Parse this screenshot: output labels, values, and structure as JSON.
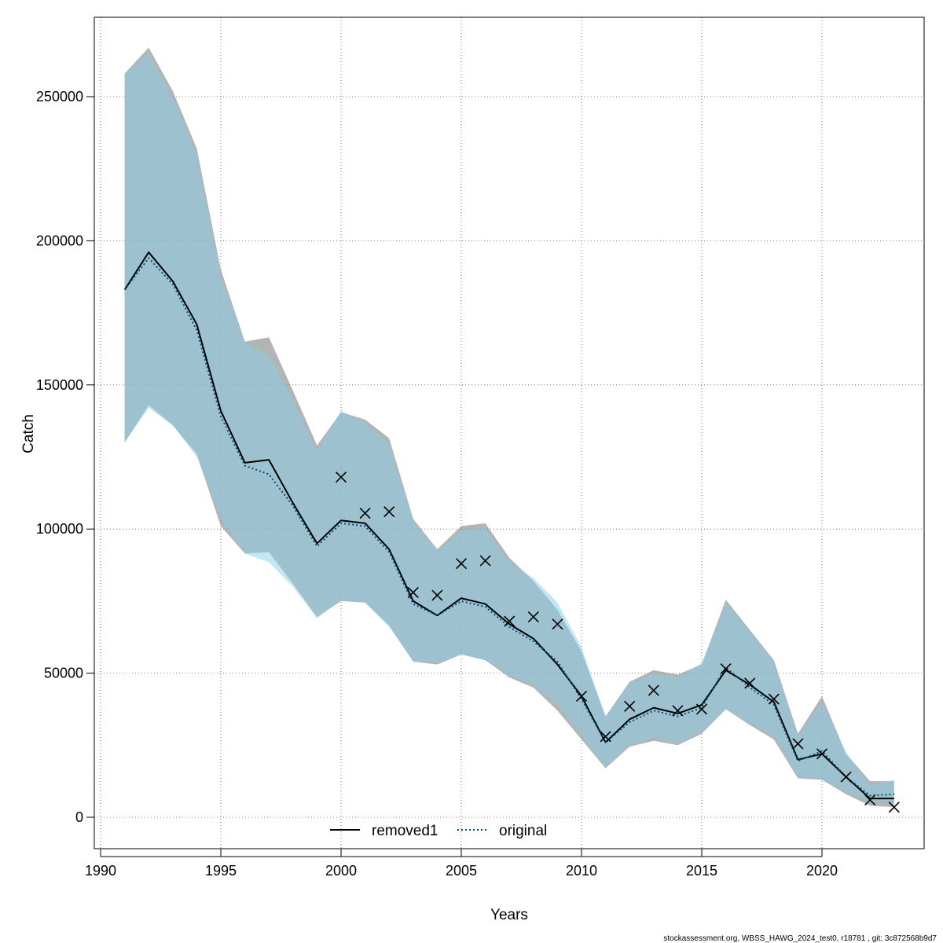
{
  "chart_data": {
    "type": "line",
    "xlabel": "Years",
    "ylabel": "Catch",
    "xlim": [
      1990,
      2023
    ],
    "ylim": [
      0,
      270000
    ],
    "x_ticks": [
      "1990",
      "1995",
      "2000",
      "2005",
      "2010",
      "2015",
      "2020"
    ],
    "y_ticks": [
      "0",
      "50000",
      "100000",
      "150000",
      "200000",
      "250000"
    ],
    "grid": true,
    "legend_position": "bottom-center",
    "colors": {
      "removed1_band": "#8c8c8c",
      "original_band": "#87ceeb",
      "removed1_line": "#000000",
      "original_line": "#00507a",
      "observed": "#000000",
      "grid": "#555555"
    },
    "series": [
      {
        "name": "removed1",
        "style": "solid",
        "x": [
          1991,
          1992,
          1993,
          1994,
          1995,
          1996,
          1997,
          1998,
          1999,
          2000,
          2001,
          2002,
          2003,
          2004,
          2005,
          2006,
          2007,
          2008,
          2009,
          2010,
          2011,
          2012,
          2013,
          2014,
          2015,
          2016,
          2017,
          2018,
          2019,
          2020,
          2021,
          2022,
          2023
        ],
        "values": [
          183000,
          196000,
          186000,
          171000,
          141000,
          123000,
          124000,
          109000,
          95000,
          103000,
          102000,
          93000,
          75000,
          70000,
          76000,
          74000,
          67000,
          62000,
          53000,
          42000,
          26000,
          34000,
          38000,
          36000,
          39000,
          51000,
          46000,
          40000,
          20000,
          22000,
          14000,
          6500,
          6500
        ],
        "lower": [
          130000,
          143000,
          136000,
          126000,
          101000,
          91500,
          92000,
          81000,
          69500,
          75000,
          74500,
          66500,
          54000,
          53000,
          56500,
          54500,
          48500,
          45000,
          37000,
          27000,
          17000,
          24500,
          26500,
          25000,
          29000,
          37500,
          32000,
          27000,
          13500,
          13000,
          8000,
          4000,
          3500
        ],
        "upper": [
          258000,
          267000,
          252000,
          232000,
          190000,
          165000,
          166500,
          148000,
          129000,
          140500,
          138000,
          131500,
          103500,
          93000,
          101000,
          102000,
          90000,
          82000,
          72000,
          57500,
          35000,
          47000,
          51000,
          49500,
          53000,
          75500,
          65000,
          54500,
          29000,
          42000,
          22000,
          12500,
          12500
        ]
      },
      {
        "name": "original",
        "style": "dotted",
        "x": [
          1991,
          1992,
          1993,
          1994,
          1995,
          1996,
          1997,
          1998,
          1999,
          2000,
          2001,
          2002,
          2003,
          2004,
          2005,
          2006,
          2007,
          2008,
          2009,
          2010,
          2011,
          2012,
          2013,
          2014,
          2015,
          2016,
          2017,
          2018,
          2019,
          2020,
          2021,
          2022,
          2023
        ],
        "values": [
          183000,
          194000,
          185000,
          169000,
          139000,
          122000,
          119000,
          108000,
          94000,
          102000,
          101000,
          92000,
          74000,
          70000,
          75000,
          73000,
          66000,
          61000,
          54000,
          41000,
          26000,
          33000,
          37000,
          35000,
          38000,
          52000,
          45000,
          39000,
          19500,
          23000,
          14000,
          7500,
          8000
        ],
        "lower": [
          130000,
          142000,
          136000,
          125000,
          103500,
          91500,
          88500,
          80000,
          69000,
          75500,
          74500,
          66000,
          54000,
          53500,
          56500,
          54500,
          49000,
          46000,
          39000,
          28000,
          17500,
          25000,
          27500,
          25500,
          29500,
          37500,
          32500,
          28000,
          14000,
          13000,
          8500,
          5500,
          5500
        ],
        "upper": [
          258000,
          265000,
          250000,
          230000,
          188000,
          164500,
          160500,
          145000,
          127000,
          141000,
          137000,
          129500,
          103000,
          92500,
          99500,
          100500,
          88500,
          83000,
          74500,
          59000,
          35000,
          46500,
          50000,
          48500,
          53500,
          74500,
          64500,
          54000,
          28000,
          40000,
          22500,
          11000,
          13000
        ]
      }
    ],
    "observed": {
      "name": "observed",
      "marker": "x",
      "x": [
        2000,
        2001,
        2002,
        2003,
        2004,
        2005,
        2006,
        2007,
        2008,
        2009,
        2010,
        2011,
        2012,
        2013,
        2014,
        2015,
        2016,
        2017,
        2018,
        2019,
        2020,
        2021,
        2022,
        2023
      ],
      "values": [
        118000,
        105500,
        106000,
        78000,
        77000,
        88000,
        89000,
        68000,
        69500,
        67000,
        42000,
        28000,
        38500,
        44000,
        37000,
        37500,
        51500,
        46500,
        41000,
        25500,
        22000,
        14000,
        6000,
        3500
      ]
    },
    "legend": [
      "removed1",
      "original"
    ]
  },
  "footer": "stockassessment.org, WBSS_HAWG_2024_test0, r18781 , git: 3c872568b9d7"
}
